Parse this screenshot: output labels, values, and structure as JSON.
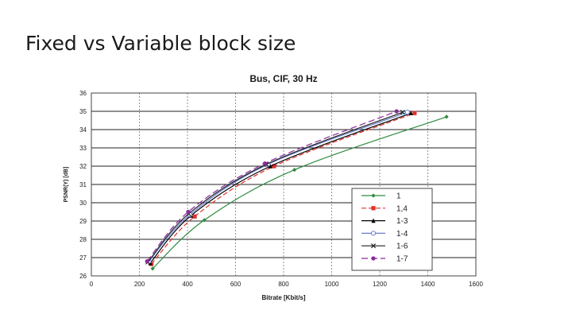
{
  "slide": {
    "title": "Fixed vs Variable block size"
  },
  "chart_data": {
    "type": "line",
    "title": "Bus, CIF, 30 Hz",
    "xlabel": "Bitrate [Kbit/s]",
    "ylabel": "PSNR(Y) [dB]",
    "xlim": [
      0,
      1600
    ],
    "ylim": [
      26,
      36
    ],
    "xticks": [
      0,
      200,
      400,
      600,
      800,
      1000,
      1200,
      1400,
      1600
    ],
    "yticks": [
      26,
      27,
      28,
      29,
      30,
      31,
      32,
      33,
      34,
      35,
      36
    ],
    "grid": true,
    "legend_position": "bottom-right",
    "series": [
      {
        "name": "1",
        "color": "#2e8b3e",
        "marker": "diamond",
        "dash": "solid",
        "x": [
          255,
          470,
          845,
          1478
        ],
        "y": [
          26.4,
          29.05,
          31.8,
          34.7
        ]
      },
      {
        "name": "1,4",
        "color": "#e0302a",
        "marker": "square",
        "dash": "6,3",
        "x": [
          250,
          430,
          760,
          1345
        ],
        "y": [
          26.65,
          29.25,
          32.0,
          34.9
        ]
      },
      {
        "name": "1-3",
        "color": "#000000",
        "marker": "triangle",
        "dash": "solid",
        "x": [
          245,
          415,
          745,
          1330
        ],
        "y": [
          26.7,
          29.3,
          32.0,
          34.9
        ]
      },
      {
        "name": "1-4",
        "color": "#6a7fd0",
        "marker": "circle-open",
        "dash": "solid",
        "x": [
          240,
          410,
          735,
          1315
        ],
        "y": [
          26.8,
          29.35,
          32.1,
          34.95
        ]
      },
      {
        "name": "1-6",
        "color": "#222222",
        "marker": "x",
        "dash": "solid",
        "x": [
          235,
          405,
          728,
          1295
        ],
        "y": [
          26.75,
          29.4,
          32.1,
          34.95
        ]
      },
      {
        "name": "1-7",
        "color": "#8a2a9a",
        "marker": "circle",
        "dash": "8,4",
        "x": [
          232,
          403,
          722,
          1270
        ],
        "y": [
          26.8,
          29.5,
          32.15,
          35.0
        ]
      }
    ]
  }
}
